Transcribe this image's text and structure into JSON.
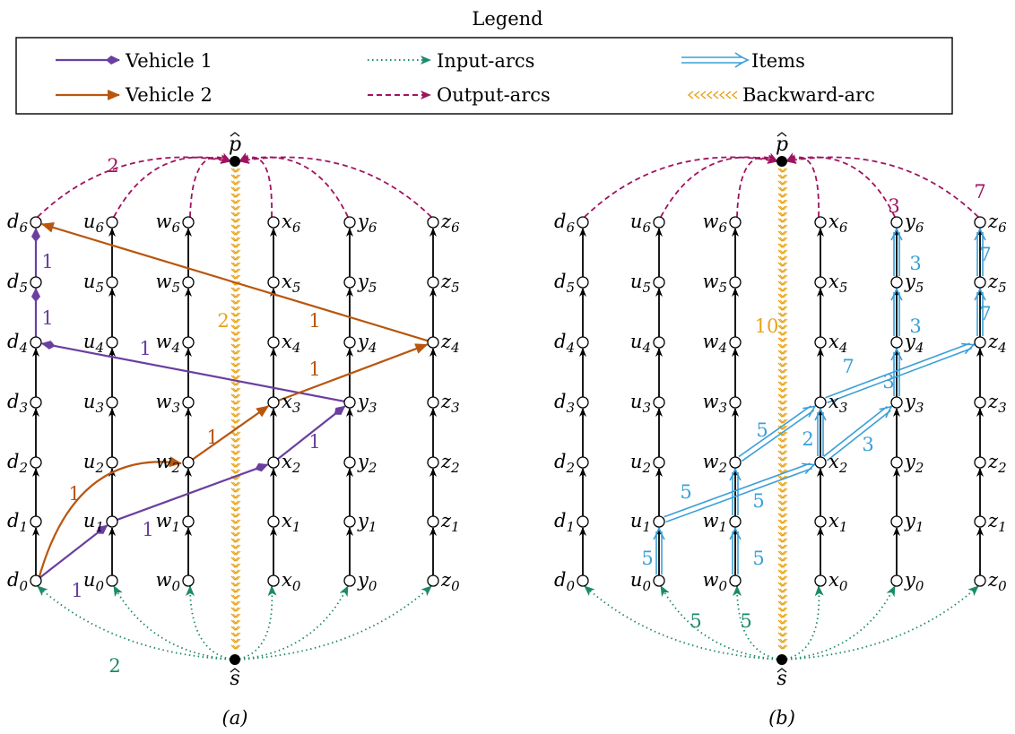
{
  "legend": {
    "title": "Legend",
    "items": [
      {
        "label": "Vehicle 1",
        "color": "#6a3fa0",
        "style": "solid"
      },
      {
        "label": "Input-arcs",
        "color": "#1a8a6a",
        "style": "dotted"
      },
      {
        "label": "Items",
        "color": "#3a9fd8",
        "style": "double"
      },
      {
        "label": "Vehicle 2",
        "color": "#b9560e",
        "style": "solid"
      },
      {
        "label": "Output-arcs",
        "color": "#a0135f",
        "style": "dashed"
      },
      {
        "label": "Backward-arc",
        "color": "#e6a31a",
        "style": "chevron"
      }
    ]
  },
  "nodes": {
    "source": {
      "base": "s"
    },
    "sink": {
      "base": "p"
    },
    "columns": [
      "d",
      "u",
      "w",
      "x",
      "y",
      "z"
    ],
    "levels": [
      "0",
      "1",
      "2",
      "3",
      "4",
      "5",
      "6"
    ]
  },
  "panel_a": {
    "caption": "(a)",
    "backward_flow": "2",
    "input_flow": "2",
    "output_flow": "2",
    "vehicle1_flows": [
      "1",
      "1",
      "1",
      "1",
      "1",
      "1"
    ],
    "vehicle2_flows": [
      "1",
      "1",
      "1",
      "1"
    ]
  },
  "panel_b": {
    "caption": "(b)",
    "backward_flow": "10",
    "input_flows": [
      "5",
      "5"
    ],
    "output_flows": [
      "3",
      "7"
    ],
    "item_flows": [
      "5",
      "5",
      "5",
      "5",
      "5",
      "2",
      "3",
      "7",
      "3",
      "3",
      "3",
      "7",
      "7"
    ]
  }
}
